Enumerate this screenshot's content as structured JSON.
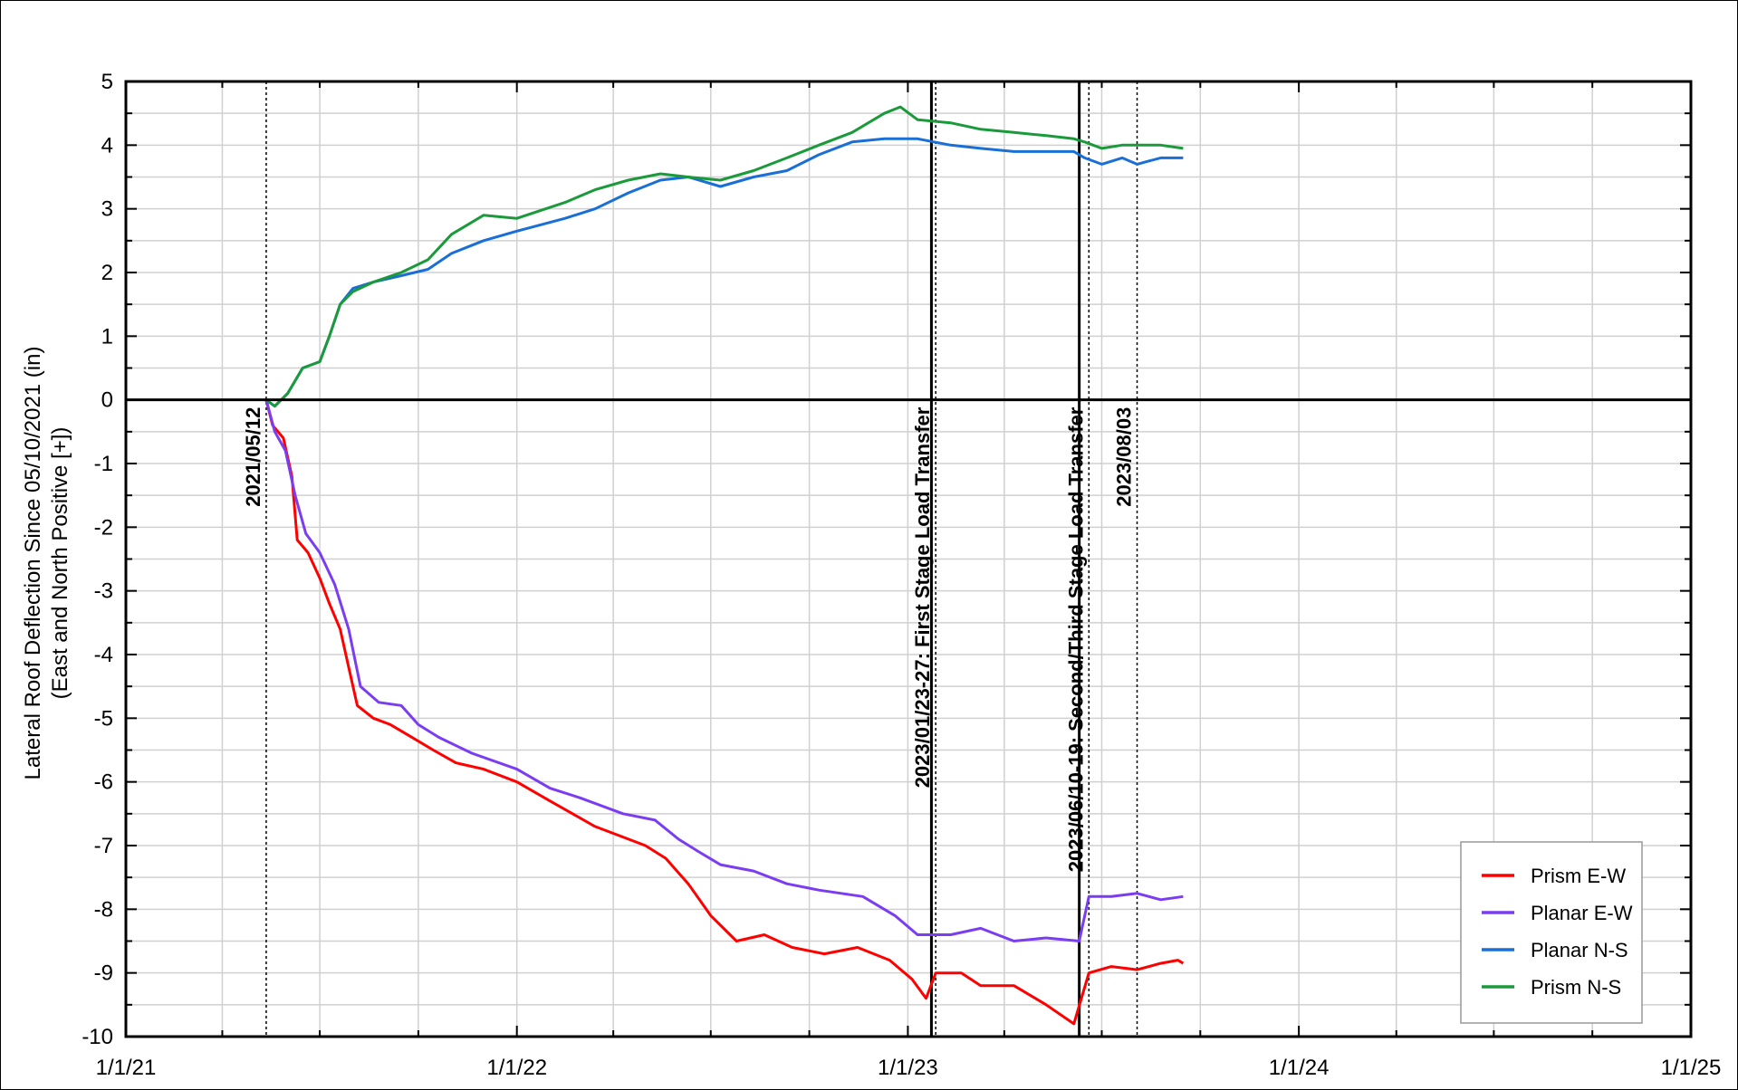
{
  "chart_data": {
    "type": "line",
    "ylabel_line1": "Lateral Roof Deflection Since 05/10/2021 (in)",
    "ylabel_line2": "(East and North Positive [+])",
    "xlim": [
      "2021-01-01",
      "2025-01-01"
    ],
    "ylim": [
      -10,
      5
    ],
    "x_ticks": [
      {
        "date": "2021-01-01",
        "label": "1/1/21"
      },
      {
        "date": "2022-01-01",
        "label": "1/1/22"
      },
      {
        "date": "2023-01-01",
        "label": "1/1/23"
      },
      {
        "date": "2024-01-01",
        "label": "1/1/24"
      },
      {
        "date": "2025-01-01",
        "label": "1/1/25"
      }
    ],
    "y_ticks": [
      5,
      4,
      3,
      2,
      1,
      0,
      -1,
      -2,
      -3,
      -4,
      -5,
      -6,
      -7,
      -8,
      -9,
      -10
    ],
    "grid": true,
    "legend_position": "bottom-right",
    "annotations": [
      {
        "date": "2021-05-12",
        "label": "2021/05/12",
        "style": "dotted"
      },
      {
        "date": "2023-01-23",
        "label": "",
        "style": "solid"
      },
      {
        "date": "2023-01-27",
        "label": "2023/01/23-27:  First Stage Load Transfer",
        "style": "dotted"
      },
      {
        "date": "2023-06-10",
        "label": "",
        "style": "solid"
      },
      {
        "date": "2023-06-19",
        "label": "2023/06/10-19:  Second/Third Stage Load Transfer",
        "style": "dotted"
      },
      {
        "date": "2023-08-03",
        "label": "2023/08/03",
        "style": "dotted"
      }
    ],
    "series": [
      {
        "name": "Prism E-W",
        "color": "#ff0000",
        "points": [
          [
            "2021-05-12",
            0.0
          ],
          [
            "2021-05-18",
            -0.4
          ],
          [
            "2021-05-28",
            -0.6
          ],
          [
            "2021-06-05",
            -1.2
          ],
          [
            "2021-06-10",
            -2.2
          ],
          [
            "2021-06-20",
            -2.4
          ],
          [
            "2021-07-01",
            -2.8
          ],
          [
            "2021-07-10",
            -3.2
          ],
          [
            "2021-07-20",
            -3.6
          ],
          [
            "2021-07-28",
            -4.2
          ],
          [
            "2021-08-05",
            -4.8
          ],
          [
            "2021-08-20",
            -5.0
          ],
          [
            "2021-09-05",
            -5.1
          ],
          [
            "2021-09-25",
            -5.3
          ],
          [
            "2021-10-15",
            -5.5
          ],
          [
            "2021-11-05",
            -5.7
          ],
          [
            "2021-12-01",
            -5.8
          ],
          [
            "2022-01-01",
            -6.0
          ],
          [
            "2022-02-01",
            -6.3
          ],
          [
            "2022-03-15",
            -6.7
          ],
          [
            "2022-05-01",
            -7.0
          ],
          [
            "2022-05-20",
            -7.2
          ],
          [
            "2022-06-10",
            -7.6
          ],
          [
            "2022-07-01",
            -8.1
          ],
          [
            "2022-07-25",
            -8.5
          ],
          [
            "2022-08-20",
            -8.4
          ],
          [
            "2022-09-15",
            -8.6
          ],
          [
            "2022-10-15",
            -8.7
          ],
          [
            "2022-11-15",
            -8.6
          ],
          [
            "2022-12-15",
            -8.8
          ],
          [
            "2023-01-05",
            -9.1
          ],
          [
            "2023-01-18",
            -9.4
          ],
          [
            "2023-01-27",
            -9.0
          ],
          [
            "2023-02-20",
            -9.0
          ],
          [
            "2023-03-10",
            -9.2
          ],
          [
            "2023-04-10",
            -9.2
          ],
          [
            "2023-05-10",
            -9.5
          ],
          [
            "2023-06-05",
            -9.8
          ],
          [
            "2023-06-12",
            -9.4
          ],
          [
            "2023-06-19",
            -9.0
          ],
          [
            "2023-07-10",
            -8.9
          ],
          [
            "2023-08-03",
            -8.95
          ],
          [
            "2023-08-25",
            -8.85
          ],
          [
            "2023-09-10",
            -8.8
          ],
          [
            "2023-09-15",
            -8.85
          ]
        ]
      },
      {
        "name": "Planar E-W",
        "color": "#7a3df2",
        "points": [
          [
            "2021-05-12",
            0.0
          ],
          [
            "2021-05-20",
            -0.5
          ],
          [
            "2021-05-30",
            -0.8
          ],
          [
            "2021-06-08",
            -1.5
          ],
          [
            "2021-06-18",
            -2.1
          ],
          [
            "2021-07-01",
            -2.4
          ],
          [
            "2021-07-15",
            -2.9
          ],
          [
            "2021-07-28",
            -3.6
          ],
          [
            "2021-08-08",
            -4.5
          ],
          [
            "2021-08-25",
            -4.75
          ],
          [
            "2021-09-15",
            -4.8
          ],
          [
            "2021-10-01",
            -5.1
          ],
          [
            "2021-10-20",
            -5.3
          ],
          [
            "2021-11-20",
            -5.55
          ],
          [
            "2022-01-01",
            -5.8
          ],
          [
            "2022-02-01",
            -6.1
          ],
          [
            "2022-03-01",
            -6.25
          ],
          [
            "2022-04-10",
            -6.5
          ],
          [
            "2022-05-10",
            -6.6
          ],
          [
            "2022-06-01",
            -6.9
          ],
          [
            "2022-06-20",
            -7.1
          ],
          [
            "2022-07-10",
            -7.3
          ],
          [
            "2022-08-10",
            -7.4
          ],
          [
            "2022-09-10",
            -7.6
          ],
          [
            "2022-10-10",
            -7.7
          ],
          [
            "2022-11-20",
            -7.8
          ],
          [
            "2022-12-20",
            -8.1
          ],
          [
            "2023-01-10",
            -8.4
          ],
          [
            "2023-02-10",
            -8.4
          ],
          [
            "2023-03-10",
            -8.3
          ],
          [
            "2023-04-10",
            -8.5
          ],
          [
            "2023-05-10",
            -8.45
          ],
          [
            "2023-06-10",
            -8.5
          ],
          [
            "2023-06-19",
            -7.8
          ],
          [
            "2023-07-10",
            -7.8
          ],
          [
            "2023-08-03",
            -7.75
          ],
          [
            "2023-08-25",
            -7.85
          ],
          [
            "2023-09-15",
            -7.8
          ]
        ]
      },
      {
        "name": "Planar N-S",
        "color": "#1a6fd6",
        "points": [
          [
            "2021-05-12",
            0.0
          ],
          [
            "2021-05-20",
            -0.1
          ],
          [
            "2021-06-01",
            0.1
          ],
          [
            "2021-06-15",
            0.5
          ],
          [
            "2021-07-01",
            0.6
          ],
          [
            "2021-07-10",
            1.0
          ],
          [
            "2021-07-20",
            1.5
          ],
          [
            "2021-08-01",
            1.75
          ],
          [
            "2021-08-20",
            1.85
          ],
          [
            "2021-09-15",
            1.95
          ],
          [
            "2021-10-10",
            2.05
          ],
          [
            "2021-11-01",
            2.3
          ],
          [
            "2021-12-01",
            2.5
          ],
          [
            "2022-01-01",
            2.65
          ],
          [
            "2022-02-15",
            2.85
          ],
          [
            "2022-03-15",
            3.0
          ],
          [
            "2022-04-15",
            3.25
          ],
          [
            "2022-05-15",
            3.45
          ],
          [
            "2022-06-10",
            3.5
          ],
          [
            "2022-07-10",
            3.35
          ],
          [
            "2022-08-10",
            3.5
          ],
          [
            "2022-09-10",
            3.6
          ],
          [
            "2022-10-10",
            3.85
          ],
          [
            "2022-11-10",
            4.05
          ],
          [
            "2022-12-10",
            4.1
          ],
          [
            "2023-01-10",
            4.1
          ],
          [
            "2023-02-10",
            4.0
          ],
          [
            "2023-03-10",
            3.95
          ],
          [
            "2023-04-10",
            3.9
          ],
          [
            "2023-05-10",
            3.9
          ],
          [
            "2023-06-05",
            3.9
          ],
          [
            "2023-06-15",
            3.8
          ],
          [
            "2023-07-01",
            3.7
          ],
          [
            "2023-07-20",
            3.8
          ],
          [
            "2023-08-03",
            3.7
          ],
          [
            "2023-08-25",
            3.8
          ],
          [
            "2023-09-15",
            3.8
          ]
        ]
      },
      {
        "name": "Prism N-S",
        "color": "#1a9a3a",
        "points": [
          [
            "2021-05-12",
            0.0
          ],
          [
            "2021-05-20",
            -0.1
          ],
          [
            "2021-06-01",
            0.1
          ],
          [
            "2021-06-15",
            0.5
          ],
          [
            "2021-07-01",
            0.6
          ],
          [
            "2021-07-10",
            1.0
          ],
          [
            "2021-07-20",
            1.5
          ],
          [
            "2021-08-01",
            1.7
          ],
          [
            "2021-08-20",
            1.85
          ],
          [
            "2021-09-15",
            2.0
          ],
          [
            "2021-10-10",
            2.2
          ],
          [
            "2021-11-01",
            2.6
          ],
          [
            "2021-12-01",
            2.9
          ],
          [
            "2022-01-01",
            2.85
          ],
          [
            "2022-02-15",
            3.1
          ],
          [
            "2022-03-15",
            3.3
          ],
          [
            "2022-04-15",
            3.45
          ],
          [
            "2022-05-15",
            3.55
          ],
          [
            "2022-06-10",
            3.5
          ],
          [
            "2022-07-10",
            3.45
          ],
          [
            "2022-08-10",
            3.6
          ],
          [
            "2022-09-10",
            3.8
          ],
          [
            "2022-10-10",
            4.0
          ],
          [
            "2022-11-10",
            4.2
          ],
          [
            "2022-12-10",
            4.5
          ],
          [
            "2022-12-25",
            4.6
          ],
          [
            "2023-01-10",
            4.4
          ],
          [
            "2023-02-10",
            4.35
          ],
          [
            "2023-03-10",
            4.25
          ],
          [
            "2023-04-10",
            4.2
          ],
          [
            "2023-05-10",
            4.15
          ],
          [
            "2023-06-05",
            4.1
          ],
          [
            "2023-06-15",
            4.05
          ],
          [
            "2023-07-01",
            3.95
          ],
          [
            "2023-07-20",
            4.0
          ],
          [
            "2023-08-03",
            4.0
          ],
          [
            "2023-08-25",
            4.0
          ],
          [
            "2023-09-15",
            3.95
          ]
        ]
      }
    ]
  }
}
